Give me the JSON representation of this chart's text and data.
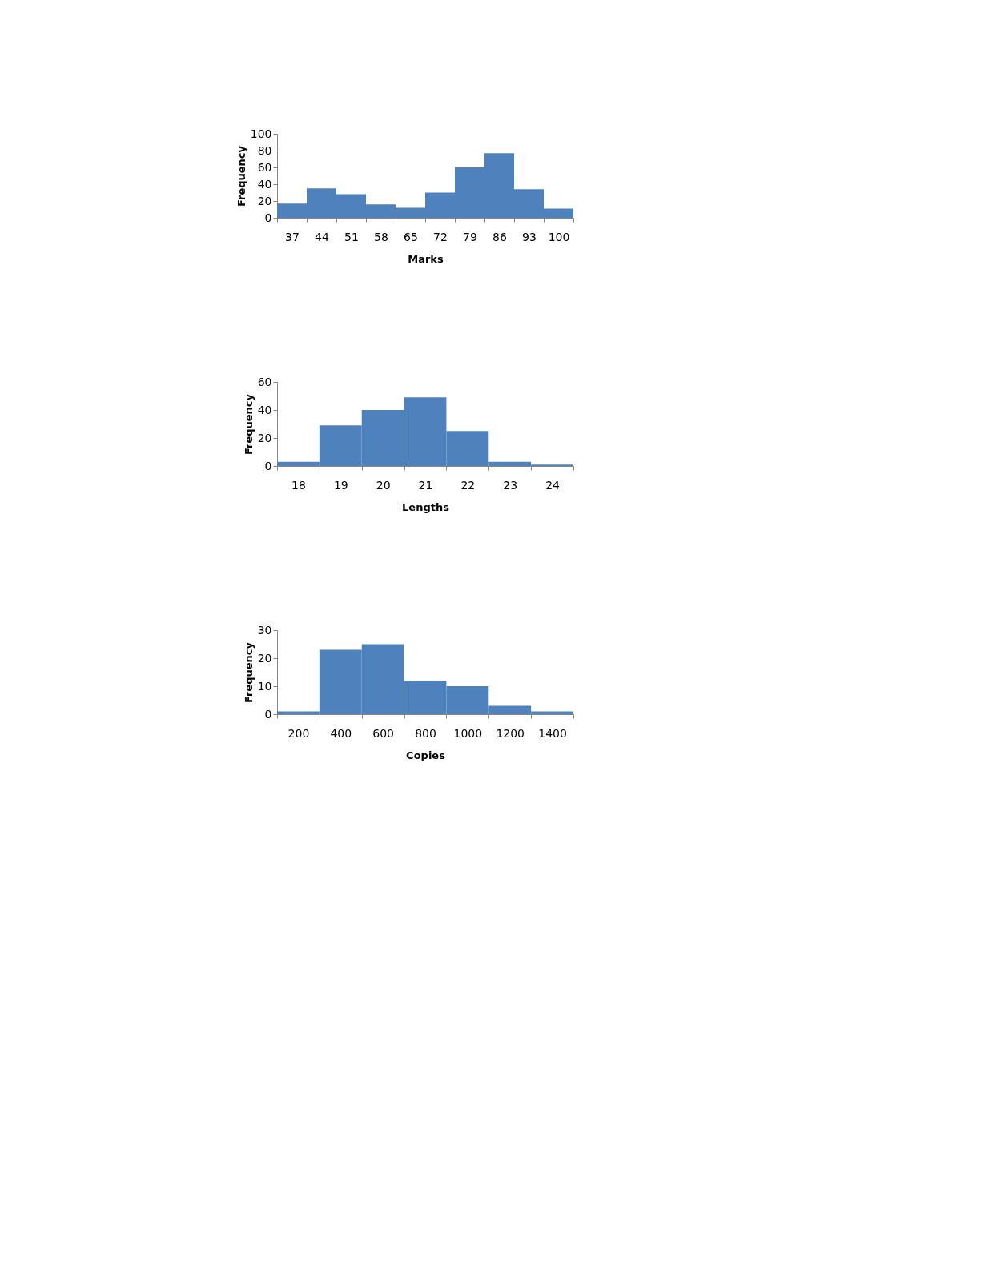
{
  "chart_data": [
    {
      "type": "bar",
      "xlabel": "Marks",
      "ylabel": "Frequency",
      "categories": [
        "37",
        "44",
        "51",
        "58",
        "65",
        "72",
        "79",
        "86",
        "93",
        "100"
      ],
      "values": [
        17,
        35,
        28,
        16,
        12,
        30,
        60,
        77,
        34,
        11
      ],
      "color": "#4f81bd",
      "ylim": [
        0,
        100
      ],
      "yticks": [
        0,
        20,
        40,
        60,
        80,
        100
      ]
    },
    {
      "type": "bar",
      "xlabel": "Lengths",
      "ylabel": "Frequency",
      "categories": [
        "18",
        "19",
        "20",
        "21",
        "22",
        "23",
        "24"
      ],
      "values": [
        3,
        29,
        40,
        49,
        25,
        3,
        1
      ],
      "color": "#4f81bd",
      "ylim": [
        0,
        60
      ],
      "yticks": [
        0,
        20,
        40,
        60
      ]
    },
    {
      "type": "bar",
      "xlabel": "Copies",
      "ylabel": "Frequency",
      "categories": [
        "200",
        "400",
        "600",
        "800",
        "1000",
        "1200",
        "1400"
      ],
      "values": [
        1,
        23,
        25,
        12,
        10,
        3,
        1
      ],
      "color": "#4f81bd",
      "ylim": [
        0,
        30
      ],
      "yticks": [
        0,
        10,
        20,
        30
      ]
    }
  ]
}
